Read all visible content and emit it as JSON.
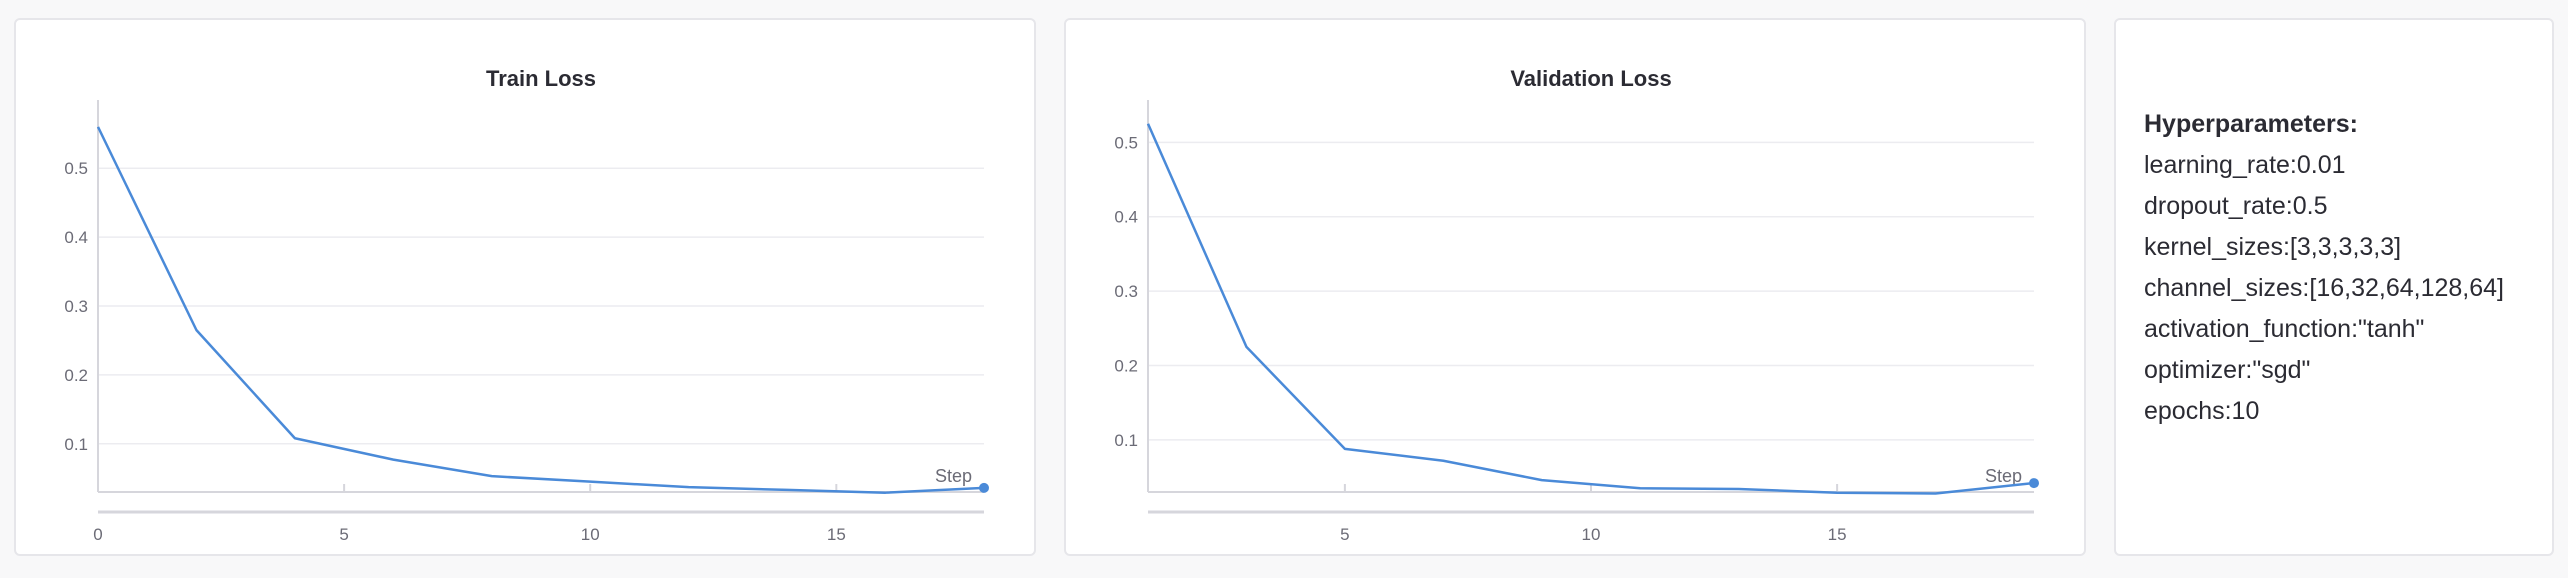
{
  "chart_data": [
    {
      "type": "line",
      "title": "Train Loss",
      "xlabel": "Step",
      "ylabel": "",
      "x": [
        0,
        2,
        4,
        6,
        8,
        10,
        12,
        14,
        16,
        18
      ],
      "series": [
        {
          "values": [
            0.56,
            0.265,
            0.108,
            0.077,
            0.053,
            0.045,
            0.037,
            0.033,
            0.029,
            0.036
          ]
        }
      ],
      "xlim": [
        0,
        18
      ],
      "ylim": [
        0.03,
        0.57
      ],
      "xticks": [
        0,
        5,
        10,
        15
      ],
      "yticks": [
        0.1,
        0.2,
        0.3,
        0.4,
        0.5
      ],
      "tick_labels_x": [
        "0",
        "5",
        "10",
        "15"
      ],
      "tick_labels_y": [
        "0.1",
        "0.2",
        "0.3",
        "0.4",
        "0.5"
      ],
      "grid": true,
      "line_color": "#4a8ad8"
    },
    {
      "type": "line",
      "title": "Validation Loss",
      "xlabel": "Step",
      "ylabel": "",
      "x": [
        1,
        3,
        5,
        7,
        9,
        11,
        13,
        15,
        17,
        19
      ],
      "series": [
        {
          "values": [
            0.525,
            0.225,
            0.088,
            0.072,
            0.046,
            0.035,
            0.034,
            0.029,
            0.028,
            0.042
          ]
        }
      ],
      "xlim": [
        1,
        19
      ],
      "ylim": [
        0.03,
        0.53
      ],
      "xticks": [
        5,
        10,
        15
      ],
      "yticks": [
        0.1,
        0.2,
        0.3,
        0.4,
        0.5
      ],
      "tick_labels_x": [
        "5",
        "10",
        "15"
      ],
      "tick_labels_y": [
        "0.1",
        "0.2",
        "0.3",
        "0.4",
        "0.5"
      ],
      "grid": true,
      "line_color": "#4a8ad8"
    }
  ],
  "hyperparameters": {
    "title": "Hyperparameters:",
    "lines": [
      "learning_rate:0.01",
      "dropout_rate:0.5",
      "kernel_sizes:[3,3,3,3,3]",
      "channel_sizes:[16,32,64,128,64]",
      "activation_function:\"tanh\"",
      "optimizer:\"sgd\"",
      "epochs:10"
    ]
  }
}
